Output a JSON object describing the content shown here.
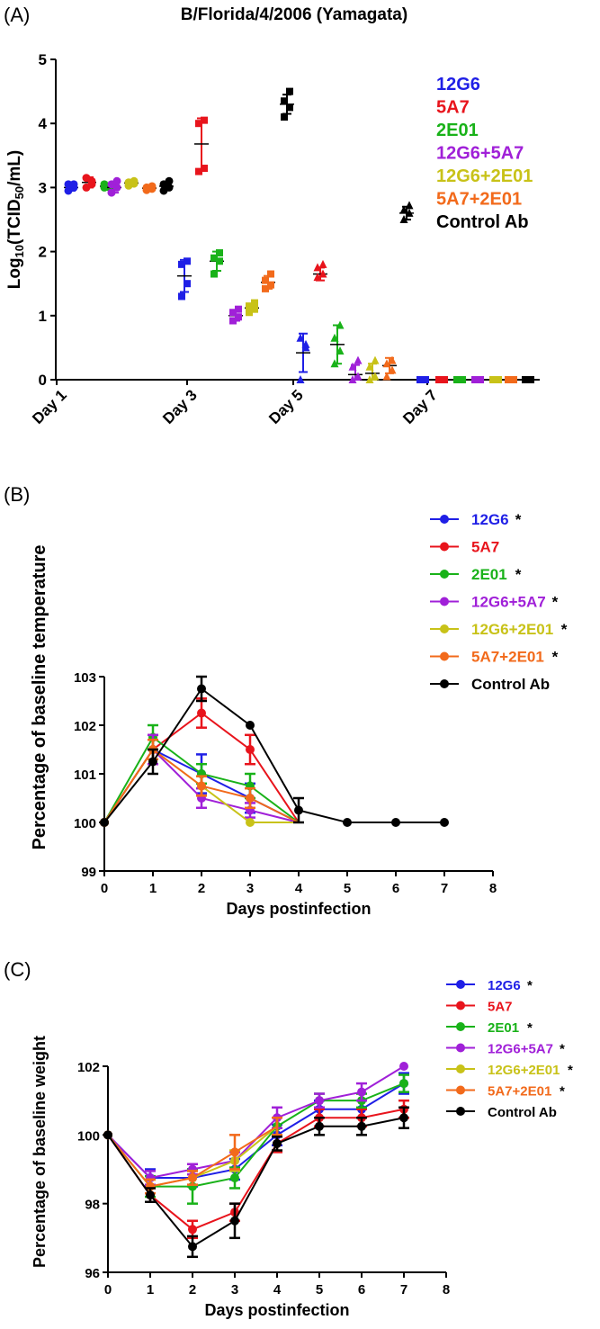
{
  "colors": {
    "12G6": "#1f1fe6",
    "5A7": "#e8141c",
    "2E01": "#19b219",
    "12G6+5A7": "#a020d8",
    "12G6+2E01": "#c8c218",
    "5A7+2E01": "#f26a1b",
    "Control Ab": "#000000"
  },
  "panels": {
    "A": {
      "tag": "(A)",
      "title": "B/Florida/4/2006 (Yamagata)"
    },
    "B": {
      "tag": "(B)"
    },
    "C": {
      "tag": "(C)"
    }
  },
  "chart_data": [
    {
      "id": "A",
      "type": "scatter",
      "title": "B/Florida/4/2006 (Yamagata)",
      "xlabel": "",
      "ylabel": "Log10(TCID50/mL)",
      "ylim": [
        0,
        5
      ],
      "yticks": [
        "0",
        "1",
        "2",
        "3",
        "4",
        "5"
      ],
      "categories": [
        "Day 1",
        "Day 3",
        "Day 5",
        "Day 7"
      ],
      "legend": [
        "12G6",
        "5A7",
        "2E01",
        "12G6+5A7",
        "12G6+2E01",
        "5A7+2E01",
        "Control Ab"
      ],
      "legend_position": "top-right",
      "series": [
        {
          "name": "12G6",
          "groups": [
            {
              "day": "Day 1",
              "mean": 3.0,
              "sd": 0.05,
              "points": [
                2.95,
                3.0,
                3.05,
                3.05
              ]
            },
            {
              "day": "Day 3",
              "mean": 1.62,
              "sd": 0.25,
              "points": [
                1.3,
                1.5,
                1.8,
                1.85
              ]
            },
            {
              "day": "Day 5",
              "mean": 0.42,
              "sd": 0.3,
              "points": [
                0.0,
                0.5,
                0.65,
                0.55
              ]
            },
            {
              "day": "Day 7",
              "mean": 0.0,
              "sd": 0.0,
              "points": [
                0,
                0,
                0,
                0
              ]
            }
          ]
        },
        {
          "name": "5A7",
          "groups": [
            {
              "day": "Day 1",
              "mean": 3.08,
              "sd": 0.08,
              "points": [
                3.0,
                3.1,
                3.15,
                3.05
              ]
            },
            {
              "day": "Day 3",
              "mean": 3.68,
              "sd": 0.4,
              "points": [
                3.25,
                3.3,
                4.0,
                4.05
              ]
            },
            {
              "day": "Day 5",
              "mean": 1.65,
              "sd": 0.1,
              "points": [
                1.6,
                1.65,
                1.75,
                1.8
              ]
            },
            {
              "day": "Day 7",
              "mean": 0.0,
              "sd": 0.0,
              "points": [
                0,
                0,
                0,
                0
              ]
            }
          ]
        },
        {
          "name": "2E01",
          "groups": [
            {
              "day": "Day 1",
              "mean": 3.02,
              "sd": 0.03,
              "points": [
                3.0,
                3.02,
                3.05,
                3.0
              ]
            },
            {
              "day": "Day 3",
              "mean": 1.85,
              "sd": 0.15,
              "points": [
                1.65,
                1.85,
                1.9,
                1.98
              ]
            },
            {
              "day": "Day 5",
              "mean": 0.55,
              "sd": 0.3,
              "points": [
                0.25,
                0.45,
                0.65,
                0.85
              ]
            },
            {
              "day": "Day 7",
              "mean": 0.0,
              "sd": 0.0,
              "points": [
                0,
                0,
                0,
                0
              ]
            }
          ]
        },
        {
          "name": "12G6+5A7",
          "groups": [
            {
              "day": "Day 1",
              "mean": 3.0,
              "sd": 0.08,
              "points": [
                2.92,
                3.0,
                3.05,
                3.1
              ]
            },
            {
              "day": "Day 3",
              "mean": 1.0,
              "sd": 0.08,
              "points": [
                0.92,
                0.98,
                1.05,
                1.1
              ]
            },
            {
              "day": "Day 5",
              "mean": 0.08,
              "sd": 0.15,
              "points": [
                0.0,
                0.05,
                0.2,
                0.3
              ]
            },
            {
              "day": "Day 7",
              "mean": 0.0,
              "sd": 0.0,
              "points": [
                0,
                0,
                0,
                0
              ]
            }
          ]
        },
        {
          "name": "12G6+2E01",
          "groups": [
            {
              "day": "Day 1",
              "mean": 3.07,
              "sd": 0.04,
              "points": [
                3.03,
                3.06,
                3.08,
                3.1
              ]
            },
            {
              "day": "Day 3",
              "mean": 1.12,
              "sd": 0.06,
              "points": [
                1.05,
                1.1,
                1.15,
                1.2
              ]
            },
            {
              "day": "Day 5",
              "mean": 0.1,
              "sd": 0.15,
              "points": [
                0.0,
                0.05,
                0.2,
                0.3
              ]
            },
            {
              "day": "Day 7",
              "mean": 0.0,
              "sd": 0.0,
              "points": [
                0,
                0,
                0,
                0
              ]
            }
          ]
        },
        {
          "name": "5A7+2E01",
          "groups": [
            {
              "day": "Day 1",
              "mean": 2.99,
              "sd": 0.03,
              "points": [
                2.96,
                2.98,
                3.0,
                3.02
              ]
            },
            {
              "day": "Day 3",
              "mean": 1.52,
              "sd": 0.1,
              "points": [
                1.42,
                1.48,
                1.55,
                1.65
              ]
            },
            {
              "day": "Day 5",
              "mean": 0.22,
              "sd": 0.12,
              "points": [
                0.05,
                0.15,
                0.25,
                0.3
              ]
            },
            {
              "day": "Day 7",
              "mean": 0.0,
              "sd": 0.0,
              "points": [
                0,
                0,
                0,
                0
              ]
            }
          ]
        },
        {
          "name": "Control Ab",
          "groups": [
            {
              "day": "Day 1",
              "mean": 3.02,
              "sd": 0.05,
              "points": [
                2.95,
                3.0,
                3.05,
                3.1
              ]
            },
            {
              "day": "Day 3",
              "mean": 4.3,
              "sd": 0.15,
              "points": [
                4.1,
                4.25,
                4.35,
                4.5
              ]
            },
            {
              "day": "Day 5",
              "mean": 2.6,
              "sd": 0.1,
              "points": [
                2.5,
                2.6,
                2.65,
                2.72
              ]
            },
            {
              "day": "Day 7",
              "mean": 0.0,
              "sd": 0.0,
              "points": [
                0,
                0,
                0,
                0
              ]
            }
          ]
        }
      ]
    },
    {
      "id": "B",
      "type": "line",
      "xlabel": "Days postinfection",
      "ylabel": "Percentage of baseline temperature",
      "xlim": [
        0,
        8
      ],
      "ylim": [
        99,
        103
      ],
      "xticks": [
        "0",
        "1",
        "2",
        "3",
        "4",
        "5",
        "6",
        "7",
        "8"
      ],
      "yticks": [
        "99",
        "100",
        "101",
        "102",
        "103"
      ],
      "legend_position": "top-right",
      "legend": [
        {
          "name": "12G6",
          "mark": "*"
        },
        {
          "name": "5A7",
          "mark": ""
        },
        {
          "name": "2E01",
          "mark": "*"
        },
        {
          "name": "12G6+5A7",
          "mark": "*"
        },
        {
          "name": "12G6+2E01",
          "mark": "*"
        },
        {
          "name": "5A7+2E01",
          "mark": "*"
        },
        {
          "name": "Control Ab",
          "mark": ""
        }
      ],
      "series": [
        {
          "name": "12G6",
          "x": [
            0,
            1,
            2,
            3,
            4
          ],
          "y": [
            100,
            101.5,
            101.0,
            100.5,
            100
          ],
          "err": [
            0,
            0.3,
            0.4,
            0.3,
            0
          ],
          "end_marker": false
        },
        {
          "name": "5A7",
          "x": [
            0,
            1,
            2,
            3,
            4
          ],
          "y": [
            100,
            101.5,
            102.25,
            101.5,
            100
          ],
          "err": [
            0,
            0.3,
            0.3,
            0.3,
            0
          ],
          "end_marker": false
        },
        {
          "name": "2E01",
          "x": [
            0,
            1,
            2,
            3,
            4
          ],
          "y": [
            100,
            101.75,
            101.0,
            100.75,
            100
          ],
          "err": [
            0,
            0.25,
            0.2,
            0.25,
            0
          ],
          "end_marker": false
        },
        {
          "name": "12G6+5A7",
          "x": [
            0,
            1,
            2,
            3,
            4
          ],
          "y": [
            100,
            101.5,
            100.5,
            100.25,
            100
          ],
          "err": [
            0,
            0.3,
            0.2,
            0.15,
            0
          ],
          "end_marker": false
        },
        {
          "name": "12G6+2E01",
          "x": [
            0,
            1,
            2,
            3,
            4
          ],
          "y": [
            100,
            101.5,
            100.75,
            100.0,
            100
          ],
          "err": [
            0,
            0.2,
            0.2,
            0.0,
            0
          ],
          "end_marker": false
        },
        {
          "name": "5A7+2E01",
          "x": [
            0,
            1,
            2,
            3,
            4
          ],
          "y": [
            100,
            101.5,
            100.75,
            100.5,
            100
          ],
          "err": [
            0,
            0.2,
            0.2,
            0.2,
            0
          ],
          "end_marker": false
        },
        {
          "name": "Control Ab",
          "x": [
            0,
            1,
            2,
            3,
            4,
            5,
            6,
            7
          ],
          "y": [
            100,
            101.25,
            102.75,
            102.0,
            100.25,
            100,
            100,
            100
          ],
          "err": [
            0,
            0.25,
            0.25,
            0,
            0.25,
            0,
            0,
            0
          ],
          "end_marker": true
        }
      ]
    },
    {
      "id": "C",
      "type": "line",
      "xlabel": "Days postinfection",
      "ylabel": "Percentage of baseline weight",
      "xlim": [
        0,
        8
      ],
      "ylim": [
        96,
        102
      ],
      "xticks": [
        "0",
        "1",
        "2",
        "3",
        "4",
        "5",
        "6",
        "7",
        "8"
      ],
      "yticks": [
        "96",
        "98",
        "100",
        "102"
      ],
      "legend_position": "top-right",
      "legend": [
        {
          "name": "12G6",
          "mark": "*"
        },
        {
          "name": "5A7",
          "mark": ""
        },
        {
          "name": "2E01",
          "mark": "*"
        },
        {
          "name": "12G6+5A7",
          "mark": "*"
        },
        {
          "name": "12G6+2E01",
          "mark": "*"
        },
        {
          "name": "5A7+2E01",
          "mark": "*"
        },
        {
          "name": "Control Ab",
          "mark": ""
        }
      ],
      "series": [
        {
          "name": "12G6",
          "x": [
            0,
            1,
            2,
            3,
            4,
            5,
            6,
            7
          ],
          "y": [
            100,
            98.75,
            98.75,
            99.0,
            100.0,
            100.75,
            100.75,
            101.5
          ],
          "err": [
            0,
            0.25,
            0.25,
            0.3,
            0.3,
            0.25,
            0.25,
            0.3
          ],
          "end_marker": true
        },
        {
          "name": "5A7",
          "x": [
            0,
            1,
            2,
            3,
            4,
            5,
            6,
            7
          ],
          "y": [
            100,
            98.25,
            97.25,
            97.75,
            99.75,
            100.5,
            100.5,
            100.75
          ],
          "err": [
            0,
            0.2,
            0.25,
            0.25,
            0.25,
            0.25,
            0.25,
            0.25
          ],
          "end_marker": true
        },
        {
          "name": "2E01",
          "x": [
            0,
            1,
            2,
            3,
            4,
            5,
            6,
            7
          ],
          "y": [
            100,
            98.5,
            98.5,
            98.75,
            100.25,
            101.0,
            101.0,
            101.5
          ],
          "err": [
            0,
            0.3,
            0.5,
            0.3,
            0.25,
            0.2,
            0.2,
            0.25
          ],
          "end_marker": true
        },
        {
          "name": "12G6+5A7",
          "x": [
            0,
            1,
            2,
            3,
            4,
            5,
            6,
            7
          ],
          "y": [
            100,
            98.75,
            99.0,
            99.25,
            100.5,
            101.0,
            101.25,
            102.0
          ],
          "err": [
            0,
            0.2,
            0.15,
            0.25,
            0.3,
            0.2,
            0.25,
            0.0
          ],
          "end_marker": true
        },
        {
          "name": "12G6+2E01",
          "x": [
            0,
            1,
            2,
            3,
            4
          ],
          "y": [
            100,
            98.5,
            98.75,
            99.25,
            100.25
          ],
          "err": [
            0,
            0.2,
            0.2,
            0.3,
            0.25
          ],
          "end_marker": false
        },
        {
          "name": "5A7+2E01",
          "x": [
            0,
            1,
            2,
            3,
            4
          ],
          "y": [
            100,
            98.5,
            98.75,
            99.5,
            100.25
          ],
          "err": [
            0,
            0.2,
            0.2,
            0.5,
            0.25
          ],
          "end_marker": false
        },
        {
          "name": "Control Ab",
          "x": [
            0,
            1,
            2,
            3,
            4,
            5,
            6,
            7
          ],
          "y": [
            100,
            98.25,
            96.75,
            97.5,
            99.75,
            100.25,
            100.25,
            100.5
          ],
          "err": [
            0,
            0.2,
            0.3,
            0.5,
            0.2,
            0.25,
            0.25,
            0.3
          ],
          "end_marker": true
        }
      ]
    }
  ]
}
